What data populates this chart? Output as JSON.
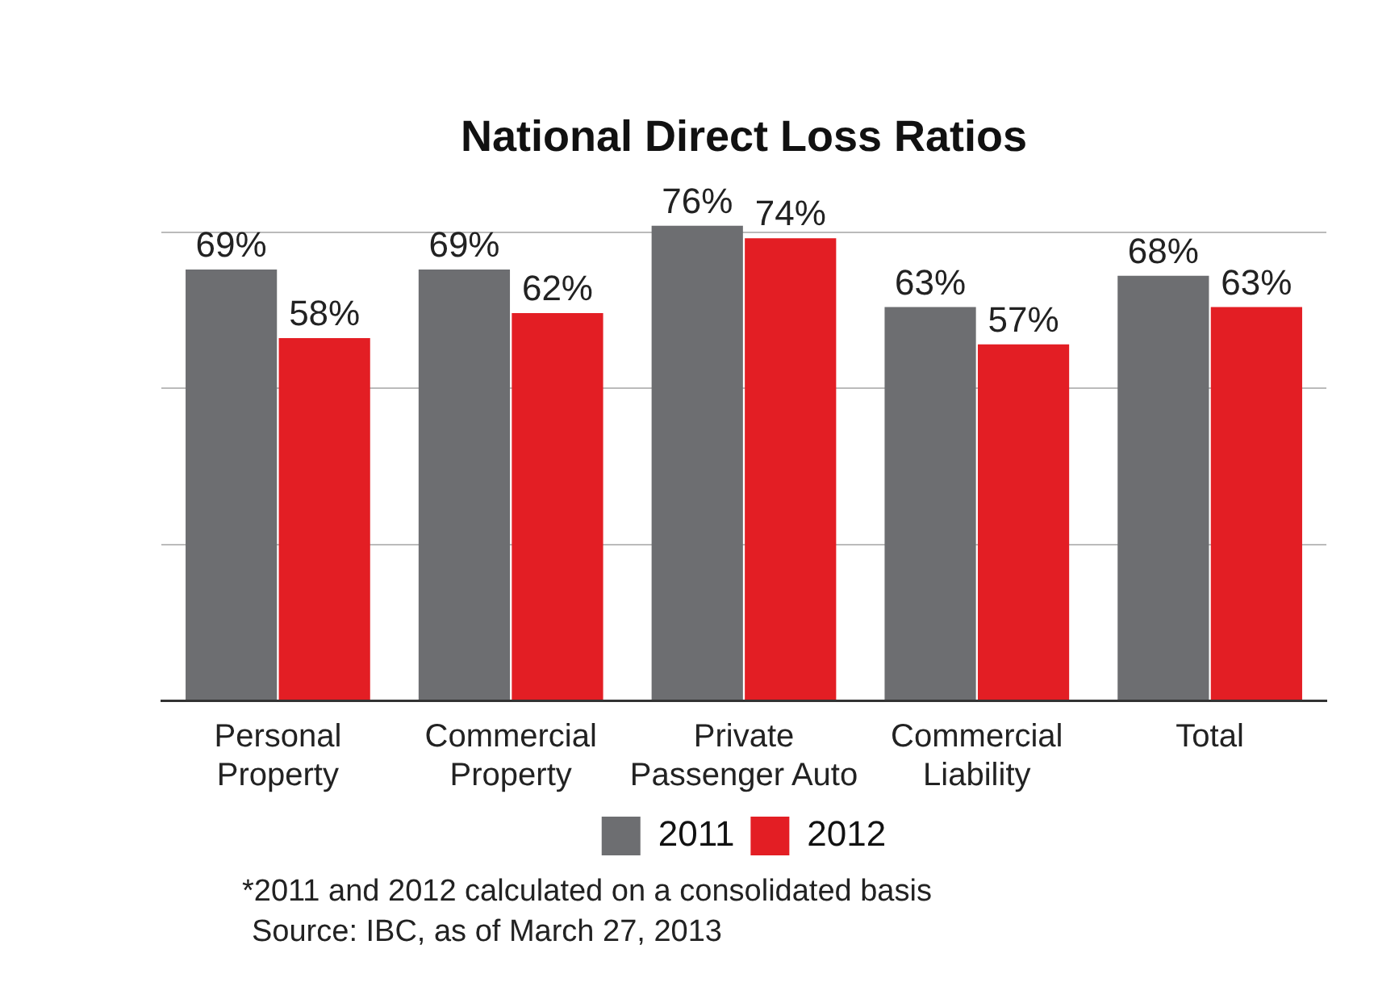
{
  "chart_data": {
    "type": "bar",
    "title": "National Direct Loss Ratios",
    "categories": [
      "Personal Property",
      "Commercial Property",
      "Private Passenger Auto",
      "Commercial Liability",
      "Total"
    ],
    "series": [
      {
        "name": "2011",
        "color": "#6d6e71",
        "values": [
          69,
          69,
          76,
          63,
          68
        ],
        "value_labels": [
          "69%",
          "69%",
          "76%",
          "63%",
          "68%"
        ]
      },
      {
        "name": "2012",
        "color": "#e31e24",
        "values": [
          58,
          62,
          74,
          57,
          63
        ],
        "value_labels": [
          "58%",
          "62%",
          "74%",
          "57%",
          "63%"
        ]
      }
    ],
    "yticks": [
      {
        "value": 0,
        "label": null
      },
      {
        "value": 25,
        "label": null
      },
      {
        "value": 50,
        "label": null
      },
      {
        "value": 75,
        "label": null
      }
    ],
    "tick_labels": "x",
    "grid": "y",
    "legend": "bottom",
    "annotations": [
      "*2011 and 2012 calculated on a consolidated basis",
      "Source: IBC, as of March 27, 2013"
    ]
  }
}
